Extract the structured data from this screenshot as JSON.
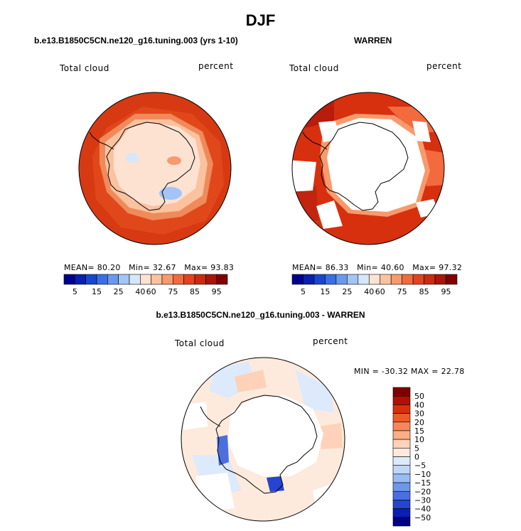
{
  "title": "DJF",
  "panels": [
    {
      "id": "left",
      "title": "b.e13.B1850C5CN.ne120_g16.tuning.003 (yrs 1-10)",
      "variable": "Total cloud",
      "units": "percent",
      "stats": {
        "mean_label": "MEAN=",
        "mean": "80.20",
        "min_label": "Min=",
        "min": "32.67",
        "max_label": "Max=",
        "max": "93.83"
      }
    },
    {
      "id": "right",
      "title": "WARREN",
      "variable": "Total cloud",
      "units": "percent",
      "stats": {
        "mean_label": "MEAN=",
        "mean": "86.33",
        "min_label": "Min=",
        "min": "40.60",
        "max_label": "Max=",
        "max": "97.32"
      }
    },
    {
      "id": "diff",
      "title": "b.e13.B1850C5CN.ne120_g16.tuning.003 - WARREN",
      "variable": "Total cloud",
      "units": "percent",
      "stats_text": "MIN = -30.32 MAX =  22.78"
    }
  ],
  "colorbar_abs": {
    "colors": [
      "#00008f",
      "#0a1fb0",
      "#1a45d0",
      "#3a6ee6",
      "#6b98ee",
      "#a4c4f5",
      "#d6e6fb",
      "#fde2d2",
      "#fbc2a0",
      "#f89a6c",
      "#f26a3e",
      "#e6421d",
      "#cc2a0e",
      "#a8150a",
      "#800000"
    ],
    "ticks": [
      "5",
      "15",
      "25",
      "40",
      "60",
      "75",
      "85",
      "95"
    ]
  },
  "colorbar_diff": {
    "colors": [
      "#7f0000",
      "#b30f06",
      "#d7300f",
      "#ee5a2a",
      "#f7865a",
      "#fcae86",
      "#fdd2b8",
      "#fdeadc",
      "#ddeafc",
      "#bfd6fa",
      "#99bbf3",
      "#6e97ea",
      "#4a70df",
      "#2545cf",
      "#0a1fb5",
      "#000085"
    ],
    "ticks": [
      "50",
      "40",
      "30",
      "20",
      "15",
      "10",
      "5",
      "0",
      "−5",
      "−10",
      "−15",
      "−20",
      "−30",
      "−40",
      "−50"
    ]
  },
  "chart_data": [
    {
      "type": "heatmap",
      "title": "b.e13.B1850C5CN.ne120_g16.tuning.003 (yrs 1-10)",
      "variable": "Total cloud",
      "units": "percent",
      "mean": 80.2,
      "min": 32.67,
      "max": 93.83,
      "levels": [
        5,
        15,
        25,
        40,
        60,
        75,
        85,
        95
      ]
    },
    {
      "type": "heatmap",
      "title": "WARREN",
      "variable": "Total cloud",
      "units": "percent",
      "mean": 86.33,
      "min": 40.6,
      "max": 97.32,
      "levels": [
        5,
        15,
        25,
        40,
        60,
        75,
        85,
        95
      ]
    },
    {
      "type": "heatmap",
      "title": "b.e13.B1850C5CN.ne120_g16.tuning.003 - WARREN",
      "variable": "Total cloud",
      "units": "percent",
      "min": -30.32,
      "max": 22.78,
      "levels": [
        -50,
        -40,
        -30,
        -20,
        -15,
        -10,
        -5,
        0,
        5,
        10,
        15,
        20,
        30,
        40,
        50
      ]
    }
  ]
}
